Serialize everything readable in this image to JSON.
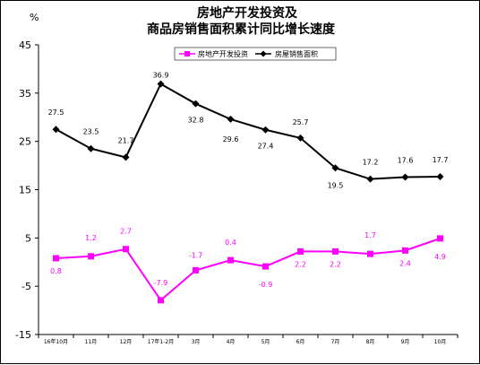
{
  "chart_data": {
    "type": "line",
    "title_lines": [
      "房地产开发投资及",
      "商品房销售面积累计同比增长速度"
    ],
    "ylabel": "%",
    "ylim": [
      -15,
      45
    ],
    "yticks": [
      "-15",
      "-5",
      "5",
      "15",
      "25",
      "35",
      "45"
    ],
    "grid": false,
    "legend_position": "top-right",
    "categories": [
      "16年10月",
      "11月",
      "12月",
      "17年1-2月",
      "3月",
      "4月",
      "5月",
      "6月",
      "7月",
      "8月",
      "9月",
      "10月"
    ],
    "series": [
      {
        "name": "房地产开发投资",
        "color": "#ff00ff",
        "marker": "square",
        "values": [
          0.8,
          1.2,
          2.7,
          -7.9,
          -1.7,
          0.4,
          -0.9,
          2.2,
          2.2,
          1.7,
          2.4,
          4.9
        ],
        "labels": [
          "0.8",
          "1.2",
          "2.7",
          "-7.9",
          "-1.7",
          "0.4",
          "-0.9",
          "2.2",
          "2.2",
          "1.7",
          "2.4",
          "4.9"
        ]
      },
      {
        "name": "房屋销售面积",
        "color": "#000000",
        "marker": "diamond",
        "values": [
          27.5,
          23.5,
          21.7,
          36.9,
          32.8,
          29.6,
          27.4,
          25.7,
          19.5,
          17.2,
          17.6,
          17.7
        ],
        "labels": [
          "27.5",
          "23.5",
          "21.7",
          "36.9",
          "32.8",
          "29.6",
          "27.4",
          "25.7",
          "19.5",
          "17.2",
          "17.6",
          "17.7"
        ]
      }
    ]
  }
}
